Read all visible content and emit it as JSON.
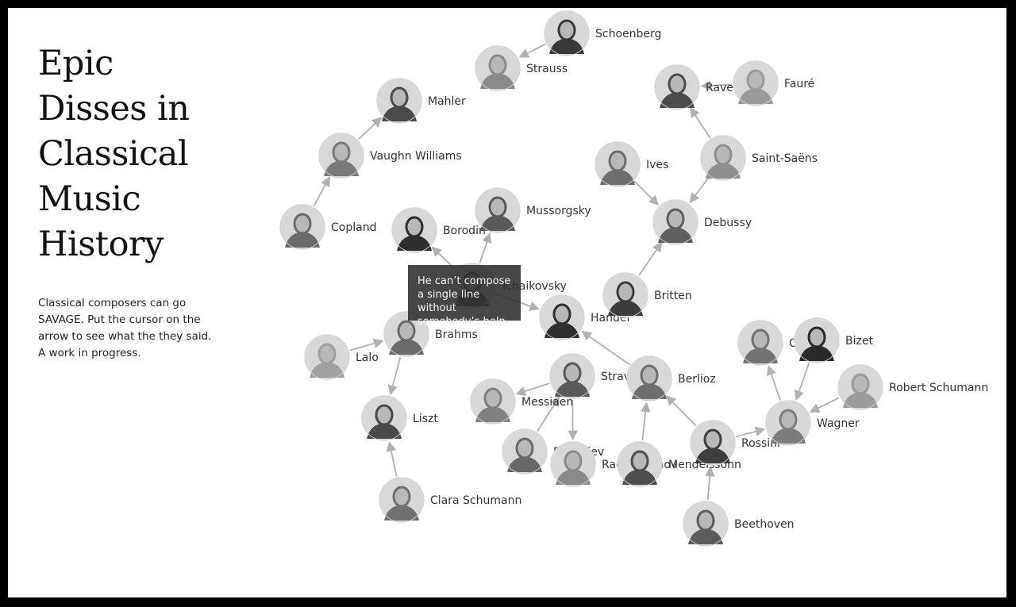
{
  "title": "Epic Disses in Classical Music History",
  "description": "Classical composers can go SAVAGE. Put the cursor on the arrow to see what the they said. A work in progress.",
  "tooltip": "He can’t compose a single line without somebody’s help.",
  "colors": {
    "edge": "#b0b0b0",
    "frame": "#000000",
    "tooltip_bg": "#2d2d2d"
  },
  "nodes": [
    {
      "id": "schoenberg",
      "label": "Schoenberg",
      "tone": "#3a3a3a"
    },
    {
      "id": "strauss",
      "label": "Strauss",
      "tone": "#8a8a8a"
    },
    {
      "id": "mahler",
      "label": "Mahler",
      "tone": "#4a4a4a"
    },
    {
      "id": "vaughn-williams",
      "label": "Vaughn Williams",
      "tone": "#7a7a7a"
    },
    {
      "id": "copland",
      "label": "Copland",
      "tone": "#6a6a6a"
    },
    {
      "id": "borodin",
      "label": "Borodin",
      "tone": "#2e2e2e"
    },
    {
      "id": "mussorgsky",
      "label": "Mussorgsky",
      "tone": "#5a5a5a"
    },
    {
      "id": "tchaikovsky",
      "label": "Tchaikovsky",
      "tone": "#555555"
    },
    {
      "id": "handel",
      "label": "Handel",
      "tone": "#303030"
    },
    {
      "id": "britten",
      "label": "Britten",
      "tone": "#3c3c3c"
    },
    {
      "id": "ravel",
      "label": "Ravel",
      "tone": "#4c4c4c"
    },
    {
      "id": "faure",
      "label": "Fauré",
      "tone": "#9a9a9a"
    },
    {
      "id": "ives",
      "label": "Ives",
      "tone": "#6e6e6e"
    },
    {
      "id": "saint-saens",
      "label": "Saint-Saëns",
      "tone": "#8e8e8e"
    },
    {
      "id": "debussy",
      "label": "Debussy",
      "tone": "#5e5e5e"
    },
    {
      "id": "lalo",
      "label": "Lalo",
      "tone": "#a0a0a0"
    },
    {
      "id": "brahms",
      "label": "Brahms",
      "tone": "#6a6a6a"
    },
    {
      "id": "liszt",
      "label": "Liszt",
      "tone": "#4a4a4a"
    },
    {
      "id": "clara-schumann",
      "label": "Clara Schumann",
      "tone": "#707070"
    },
    {
      "id": "stravinsky",
      "label": "Stravinsky",
      "tone": "#5a5a5a"
    },
    {
      "id": "messiaen",
      "label": "Messiaen",
      "tone": "#808080"
    },
    {
      "id": "prokofiev",
      "label": "Prokofiev",
      "tone": "#686868"
    },
    {
      "id": "rachmaninov",
      "label": "Rachmaninov",
      "tone": "#8a8a8a"
    },
    {
      "id": "berlioz",
      "label": "Berlioz",
      "tone": "#6e6e6e"
    },
    {
      "id": "mendelssohn",
      "label": "Mendelssohn",
      "tone": "#4e4e4e"
    },
    {
      "id": "rossini",
      "label": "Rossini",
      "tone": "#3e3e3e"
    },
    {
      "id": "beethoven",
      "label": "Beethoven",
      "tone": "#5c5c5c"
    },
    {
      "id": "chopin",
      "label": "Chopin",
      "tone": "#727272"
    },
    {
      "id": "bizet",
      "label": "Bizet",
      "tone": "#2a2a2a"
    },
    {
      "id": "robert-schumann",
      "label": "Robert Schumann",
      "tone": "#9a9a9a"
    },
    {
      "id": "wagner",
      "label": "Wagner",
      "tone": "#7c7c7c"
    }
  ],
  "edges": [
    {
      "from": "schoenberg",
      "to": "strauss"
    },
    {
      "from": "vaughn-williams",
      "to": "mahler"
    },
    {
      "from": "copland",
      "to": "vaughn-williams"
    },
    {
      "from": "tchaikovsky",
      "to": "borodin"
    },
    {
      "from": "tchaikovsky",
      "to": "mussorgsky"
    },
    {
      "from": "tchaikovsky",
      "to": "handel"
    },
    {
      "from": "faure",
      "to": "ravel"
    },
    {
      "from": "saint-saens",
      "to": "ravel"
    },
    {
      "from": "ives",
      "to": "debussy"
    },
    {
      "from": "saint-saens",
      "to": "debussy"
    },
    {
      "from": "britten",
      "to": "debussy"
    },
    {
      "from": "lalo",
      "to": "brahms"
    },
    {
      "from": "brahms",
      "to": "liszt"
    },
    {
      "from": "clara-schumann",
      "to": "liszt"
    },
    {
      "from": "stravinsky",
      "to": "messiaen"
    },
    {
      "from": "stravinsky",
      "to": "rachmaninov"
    },
    {
      "from": "prokofiev",
      "to": "stravinsky"
    },
    {
      "from": "berlioz",
      "to": "handel"
    },
    {
      "from": "mendelssohn",
      "to": "berlioz"
    },
    {
      "from": "rossini",
      "to": "berlioz"
    },
    {
      "from": "beethoven",
      "to": "rossini"
    },
    {
      "from": "rossini",
      "to": "wagner"
    },
    {
      "from": "wagner",
      "to": "chopin"
    },
    {
      "from": "bizet",
      "to": "wagner"
    },
    {
      "from": "robert-schumann",
      "to": "wagner"
    }
  ]
}
